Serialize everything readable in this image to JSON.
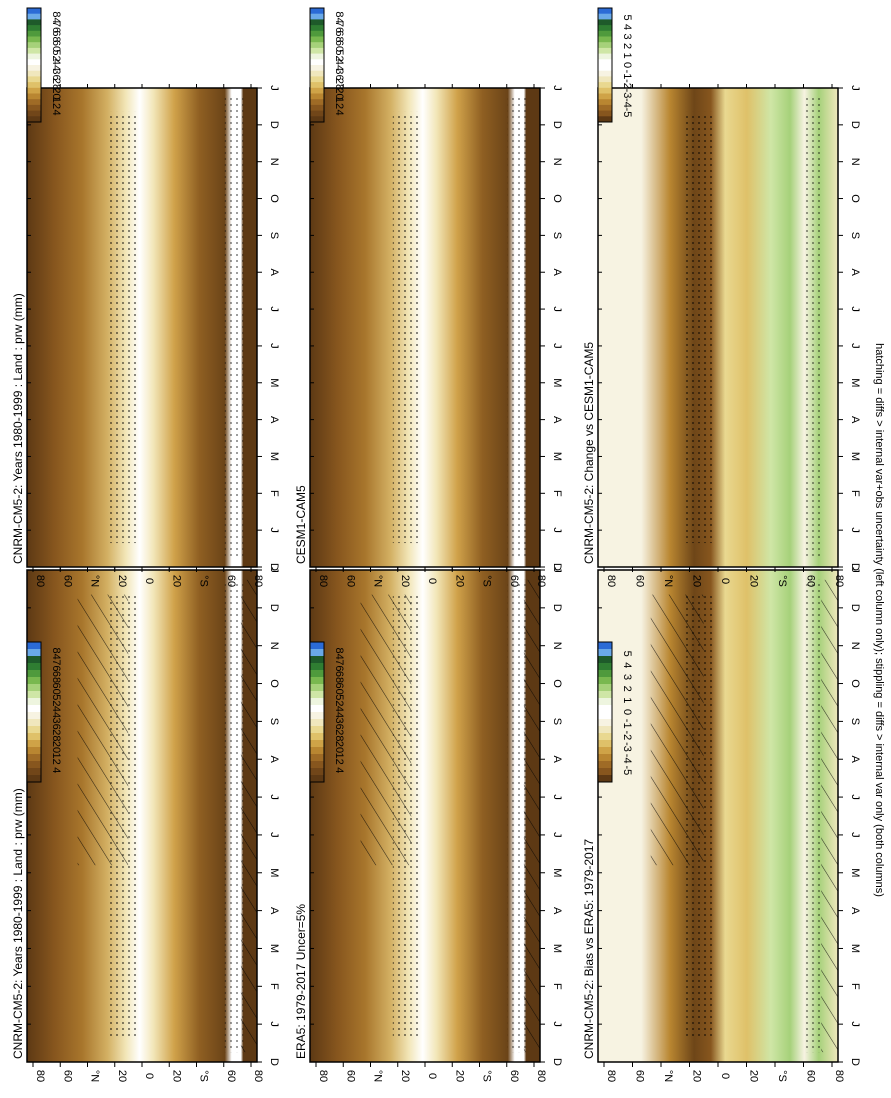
{
  "figure": {
    "footnote": "hatching = diffs > internal var+obs uncertainty (left column only); stippling = diffs > internal var only (both columns)"
  },
  "axes": {
    "month_ticks": [
      "D",
      "J",
      "F",
      "M",
      "A",
      "M",
      "J",
      "J",
      "A",
      "S",
      "O",
      "N",
      "D",
      "J"
    ],
    "lat_ticks": [
      "80",
      "60",
      "°N",
      "20",
      "0",
      "20",
      "°S",
      "60",
      "80"
    ]
  },
  "colorbars": {
    "abs": [
      "84",
      "76",
      "68",
      "60",
      "52",
      "44",
      "36",
      "28",
      "20",
      "12",
      "4"
    ],
    "diff": [
      "5",
      "4",
      "3",
      "2",
      "1",
      "0",
      "-1",
      "-2",
      "-3",
      "-4",
      "-5"
    ]
  },
  "colors": {
    "abs": [
      "#2b6bd6",
      "#6aa9e8",
      "#1e5a2a",
      "#2f7d32",
      "#4f9a3c",
      "#79b84f",
      "#a6d17a",
      "#cfe6a6",
      "#eef5df",
      "#ffffff",
      "#f7f3e2",
      "#f0e7bd",
      "#e9d890",
      "#dfc169",
      "#cfa347",
      "#b98631",
      "#9f6b26",
      "#87561e",
      "#714619",
      "#5d3914"
    ],
    "diff": [
      "#2b6bd6",
      "#6aa9e8",
      "#1e5a2a",
      "#2f7d32",
      "#4f9a3c",
      "#79b84f",
      "#a6d17a",
      "#cfe6a6",
      "#eef5df",
      "#ffffff",
      "#ffffff",
      "#f7f3e2",
      "#f0e7bd",
      "#e9d890",
      "#dfc169",
      "#cfa347",
      "#b98631",
      "#9f6b26",
      "#87561e",
      "#5d3914"
    ]
  },
  "panels": [
    {
      "id": "cnrm-hatched",
      "title": "CNRM-CM5-2: Years 1980-1999 : Land : prw (mm)",
      "colorbar": "abs"
    },
    {
      "id": "cnrm",
      "title": "CNRM-CM5-2: Years 1980-1999 : Land : prw (mm)",
      "colorbar": "abs"
    },
    {
      "id": "era5",
      "title": "ERA5: 1979-2017 Uncer=5%",
      "colorbar": "abs"
    },
    {
      "id": "cesm",
      "title": "CESM1-CAM5",
      "colorbar": "abs"
    },
    {
      "id": "bias",
      "title": "CNRM-CM5-2: Bias vs ERA5: 1979-2017",
      "colorbar": "diff"
    },
    {
      "id": "change",
      "title": "CNRM-CM5-2: Change vs CESM1-CAM5",
      "colorbar": "diff"
    }
  ],
  "chart_data": [
    {
      "type": "heatmap",
      "title": "CNRM-CM5-2: Years 1980-1999 : Land : prw (mm)",
      "x": [
        "D",
        "J",
        "F",
        "M",
        "A",
        "M",
        "J",
        "J",
        "A",
        "S",
        "O",
        "N",
        "D",
        "J"
      ],
      "y": [
        "80",
        "60",
        "°N",
        "20",
        "0",
        "20",
        "°S",
        "60",
        "80"
      ],
      "zlevels": [
        84,
        76,
        68,
        60,
        52,
        44,
        36,
        28,
        20,
        12,
        4
      ]
    },
    {
      "type": "heatmap",
      "title": "ERA5: 1979-2017 Uncer=5%",
      "x": [
        "D",
        "J",
        "F",
        "M",
        "A",
        "M",
        "J",
        "J",
        "A",
        "S",
        "O",
        "N",
        "D",
        "J"
      ],
      "y": [
        "80",
        "60",
        "°N",
        "20",
        "0",
        "20",
        "°S",
        "60",
        "80"
      ],
      "zlevels": [
        84,
        76,
        68,
        60,
        52,
        44,
        36,
        28,
        20,
        12,
        4
      ]
    },
    {
      "type": "heatmap",
      "title": "CESM1-CAM5",
      "x": [
        "D",
        "J",
        "F",
        "M",
        "A",
        "M",
        "J",
        "J",
        "A",
        "S",
        "O",
        "N",
        "D",
        "J"
      ],
      "y": [
        "80",
        "60",
        "°N",
        "20",
        "0",
        "20",
        "°S",
        "60",
        "80"
      ],
      "zlevels": [
        84,
        76,
        68,
        60,
        52,
        44,
        36,
        28,
        20,
        12,
        4
      ]
    },
    {
      "type": "heatmap",
      "title": "CNRM-CM5-2: Bias vs ERA5: 1979-2017",
      "x": [
        "D",
        "J",
        "F",
        "M",
        "A",
        "M",
        "J",
        "J",
        "A",
        "S",
        "O",
        "N",
        "D",
        "J"
      ],
      "y": [
        "80",
        "60",
        "°N",
        "20",
        "0",
        "20",
        "°S",
        "60",
        "80"
      ],
      "zlevels": [
        5,
        4,
        3,
        2,
        1,
        0,
        -1,
        -2,
        -3,
        -4,
        -5
      ]
    },
    {
      "type": "heatmap",
      "title": "CNRM-CM5-2: Change vs CESM1-CAM5",
      "x": [
        "D",
        "J",
        "F",
        "M",
        "A",
        "M",
        "J",
        "J",
        "A",
        "S",
        "O",
        "N",
        "D",
        "J"
      ],
      "y": [
        "80",
        "60",
        "°N",
        "20",
        "0",
        "20",
        "°S",
        "60",
        "80"
      ],
      "zlevels": [
        5,
        4,
        3,
        2,
        1,
        0,
        -1,
        -2,
        -3,
        -4,
        -5
      ]
    }
  ]
}
